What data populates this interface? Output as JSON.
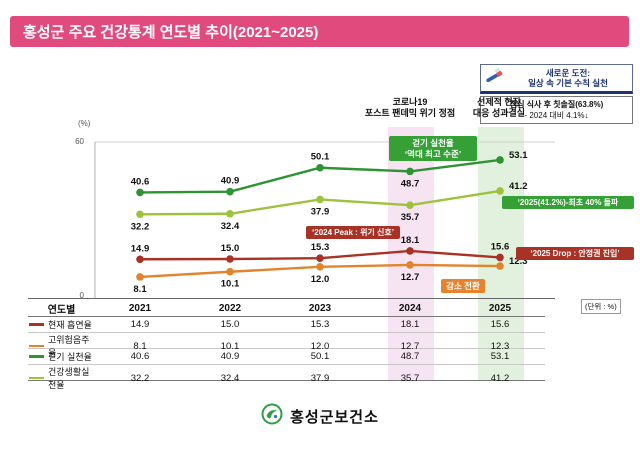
{
  "title": "홍성군 주요 건강통계 연도별 추이(2021~2025)",
  "top_right": {
    "challenge_line1": "새로운 도전:",
    "challenge_line2": "일상 속 기본 수칙 실천",
    "detail_line1": "점심 식사 후 칫솔질(63.8%)",
    "detail_line2": "- 2024 대비 4.1%↓"
  },
  "annotations": {
    "covid_line1": "코로나19",
    "covid_line2": "포스트 팬데믹 위기 정점",
    "proactive_line1": "선제적 현장",
    "proactive_line2": "대응 성과결실",
    "walking_line1": "걷기 실천율",
    "walking_line2": "‘역대 최고 수준’",
    "peak": "‘2024 Peak : 위기 신호’",
    "breakthrough": "‘2025(41.2%)-최초 40% 돌파",
    "drop": "‘2025 Drop : 안정권 진입’",
    "decrease": "감소 전환",
    "unit_note": "(단위 : %)"
  },
  "axis": {
    "y_unit": "(%)",
    "y_top": "60",
    "y_bottom": "0"
  },
  "chart_data": {
    "type": "line",
    "title": "홍성군 주요 건강통계 연도별 추이(2021~2025)",
    "categories": [
      "2021",
      "2022",
      "2023",
      "2024",
      "2025"
    ],
    "series": [
      {
        "name": "현재 흡연율",
        "color": "#a93226",
        "values": [
          14.9,
          15.0,
          15.3,
          18.1,
          15.6
        ],
        "label_pos": [
          "above",
          "above",
          "above",
          "above",
          "above"
        ]
      },
      {
        "name": "고위험음주율",
        "color": "#e2832d",
        "values": [
          8.1,
          10.1,
          12.0,
          12.7,
          12.3
        ],
        "label_pos": [
          "below",
          "below",
          "below",
          "below",
          "right"
        ]
      },
      {
        "name": "걷기 실천율",
        "color": "#2e9332",
        "values": [
          40.6,
          40.9,
          50.1,
          48.7,
          53.1
        ],
        "label_pos": [
          "above",
          "above",
          "above",
          "below",
          "right"
        ]
      },
      {
        "name": "건강생활실천율",
        "color": "#9dc33c",
        "values": [
          32.2,
          32.4,
          37.9,
          35.7,
          41.2
        ],
        "label_pos": [
          "below",
          "below",
          "below",
          "below",
          "right"
        ]
      }
    ],
    "ylim": [
      0,
      60
    ],
    "y_ticks_shown": [
      "0",
      "60"
    ],
    "grid": "top-line-only",
    "legend_position": "table-left-column",
    "highlight_bands": [
      {
        "category": "2024",
        "color": "#f7e4f3"
      },
      {
        "category": "2025",
        "color": "#e2f1dd"
      }
    ]
  },
  "table": {
    "header_label": "연도별"
  },
  "footer": {
    "org_name": "홍성군보건소"
  }
}
